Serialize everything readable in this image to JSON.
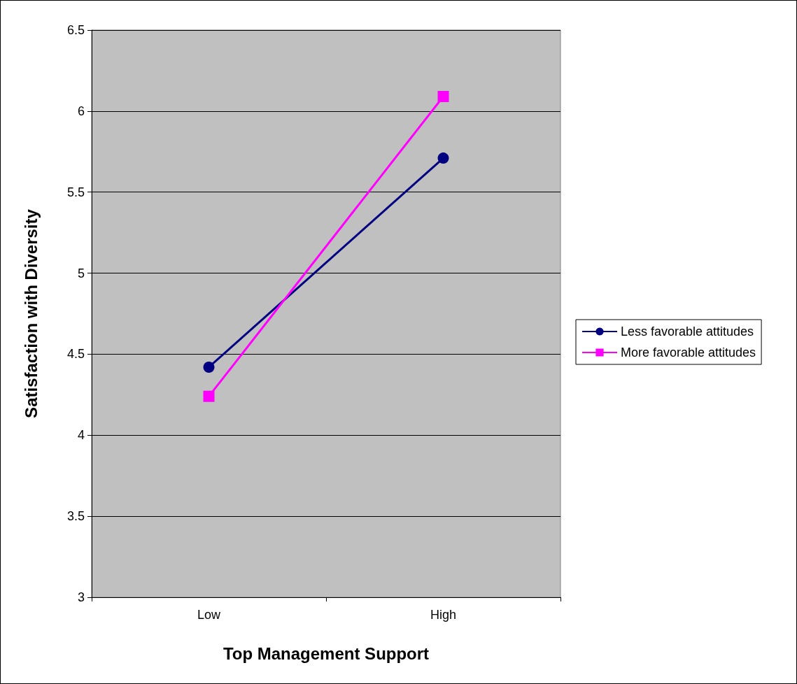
{
  "chart_data": {
    "type": "line",
    "xlabel": "Top Management Support",
    "ylabel": "Satisfaction with Diversity",
    "categories": [
      "Low",
      "High"
    ],
    "series": [
      {
        "name": "Less favorable attitudes",
        "color": "#000080",
        "marker": "circle",
        "values": [
          4.42,
          5.71
        ]
      },
      {
        "name": "More favorable attitudes",
        "color": "#ff00ff",
        "marker": "square",
        "values": [
          4.24,
          6.09
        ]
      }
    ],
    "ylim": [
      3,
      6.5
    ],
    "yticks": [
      3,
      3.5,
      4,
      4.5,
      5,
      5.5,
      6,
      6.5
    ],
    "grid": "y",
    "legend": "right"
  }
}
